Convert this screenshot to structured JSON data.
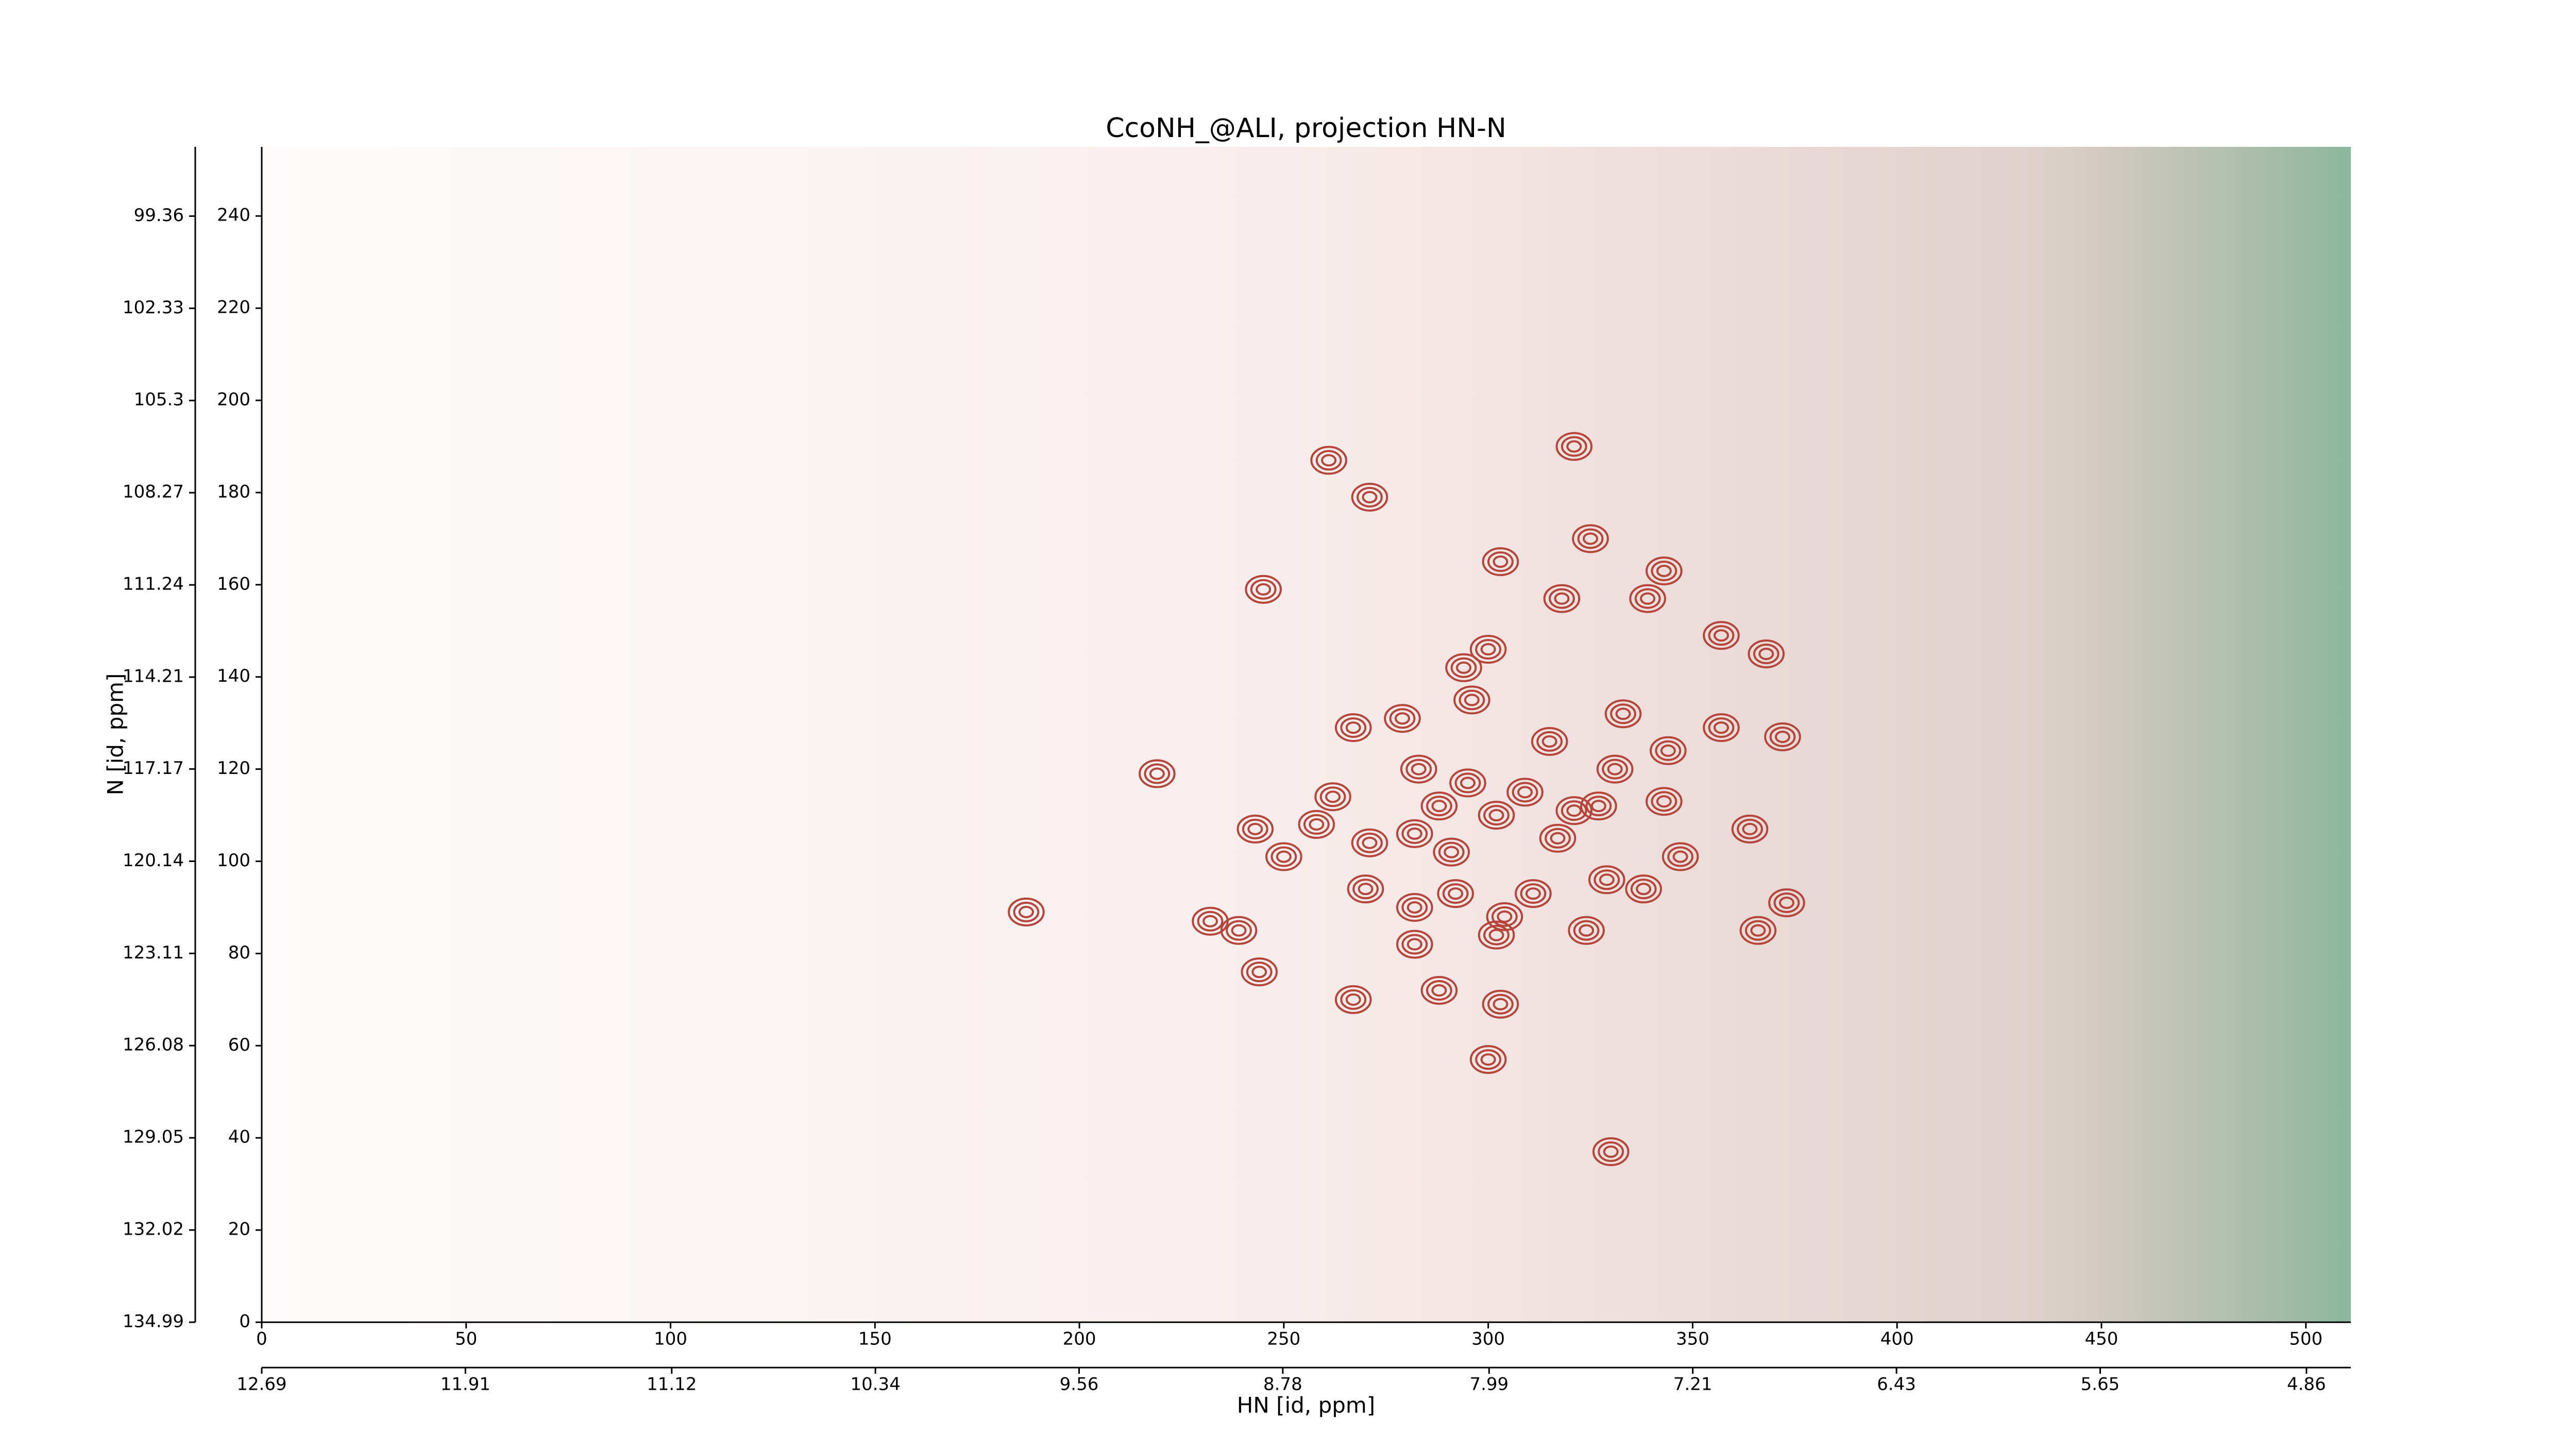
{
  "chart_data": {
    "type": "contour",
    "title": "CcoNH_@ALI, projection HN-N",
    "xlabel": "HN [id, ppm]",
    "ylabel": "N [id, ppm]",
    "xlim": [
      0,
      511
    ],
    "ylim": [
      0,
      255
    ],
    "xticks": [
      0,
      50,
      100,
      150,
      200,
      250,
      300,
      350,
      400,
      450,
      500
    ],
    "yticks": [
      0,
      20,
      40,
      60,
      80,
      100,
      120,
      140,
      160,
      180,
      200,
      220,
      240
    ],
    "x2lim": [
      12.69,
      4.69
    ],
    "x2ticks": [
      12.69,
      11.91,
      11.12,
      10.34,
      9.56,
      8.78,
      7.99,
      7.21,
      6.43,
      5.65,
      4.86
    ],
    "y2lim": [
      134.99,
      97.13
    ],
    "y2ticks": [
      134.99,
      132.02,
      129.05,
      126.08,
      123.11,
      120.14,
      117.17,
      114.21,
      111.24,
      108.27,
      105.3,
      102.33,
      99.36
    ],
    "series": [
      {
        "color": "#b5453a",
        "x": [
          261,
          321,
          325,
          271,
          245,
          303,
          318,
          339,
          343,
          357,
          368,
          300,
          294,
          279,
          267,
          296,
          357,
          372,
          333,
          344,
          315,
          283,
          295,
          331,
          262,
          288,
          302,
          309,
          321,
          327,
          343,
          219,
          243,
          258,
          271,
          282,
          317,
          347,
          364,
          250,
          291,
          329,
          270,
          311,
          338,
          282,
          292,
          304,
          373,
          232,
          239,
          324,
          366,
          302,
          282,
          244,
          288,
          267,
          303,
          300,
          187,
          330
        ],
        "values": [
          187,
          190,
          170,
          179,
          159,
          165,
          157,
          157,
          163,
          149,
          145,
          146,
          142,
          131,
          129,
          135,
          129,
          127,
          132,
          124,
          126,
          120,
          117,
          120,
          114,
          112,
          110,
          115,
          111,
          112,
          113,
          119,
          107,
          108,
          104,
          106,
          105,
          101,
          107,
          101,
          102,
          96,
          94,
          93,
          94,
          90,
          93,
          88,
          91,
          87,
          85,
          85,
          85,
          84,
          82,
          76,
          72,
          70,
          69,
          57,
          89,
          37
        ]
      }
    ]
  }
}
